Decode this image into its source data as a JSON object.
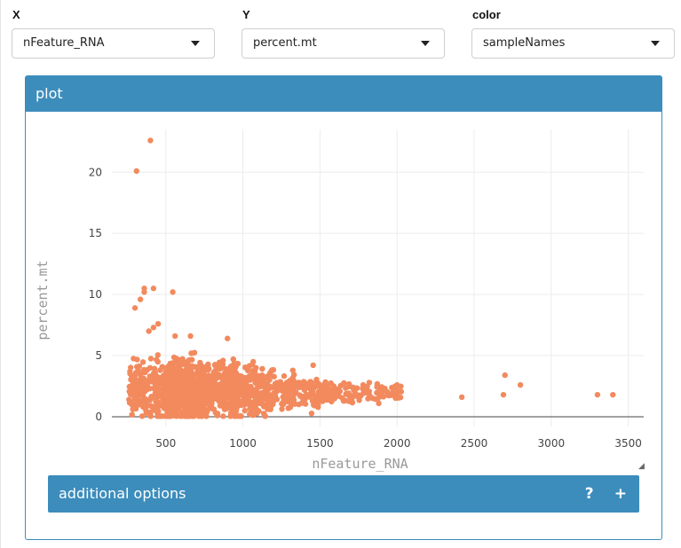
{
  "controls": {
    "x": {
      "label": "X",
      "value": "nFeature_RNA"
    },
    "y": {
      "label": "Y",
      "value": "percent.mt"
    },
    "color": {
      "label": "color",
      "value": "sampleNames"
    }
  },
  "box": {
    "title": "plot"
  },
  "additional_options": {
    "label": "additional options",
    "help": "?",
    "expand": "+"
  },
  "colors": {
    "accent": "#3c8dbc",
    "point": "#f28a5e",
    "grid": "#ececec"
  },
  "chart_data": {
    "type": "scatter",
    "title": "",
    "xlabel": "nFeature_RNA",
    "ylabel": "percent.mt",
    "xlim": [
      150,
      3600
    ],
    "ylim": [
      -0.8,
      23.5
    ],
    "xticks": [
      500,
      1000,
      1500,
      2000,
      2500,
      3000,
      3500
    ],
    "yticks": [
      0,
      5,
      10,
      15,
      20
    ],
    "grid": true,
    "legend": "none",
    "cluster": {
      "x_range": [
        220,
        2050
      ],
      "y_range": [
        0,
        6.6
      ],
      "approx_count": 2000
    },
    "outliers": [
      {
        "x": 400,
        "y": 22.6
      },
      {
        "x": 310,
        "y": 20.1
      },
      {
        "x": 360,
        "y": 10.5
      },
      {
        "x": 420,
        "y": 10.5
      },
      {
        "x": 545,
        "y": 10.2
      },
      {
        "x": 360,
        "y": 10.2
      },
      {
        "x": 300,
        "y": 8.9
      },
      {
        "x": 335,
        "y": 9.6
      },
      {
        "x": 450,
        "y": 7.6
      },
      {
        "x": 420,
        "y": 7.3
      },
      {
        "x": 390,
        "y": 7.0
      },
      {
        "x": 560,
        "y": 6.6
      },
      {
        "x": 660,
        "y": 6.6
      },
      {
        "x": 900,
        "y": 6.4
      },
      {
        "x": 2420,
        "y": 1.6
      },
      {
        "x": 2690,
        "y": 1.8
      },
      {
        "x": 2700,
        "y": 3.4
      },
      {
        "x": 2800,
        "y": 2.6
      },
      {
        "x": 3300,
        "y": 1.8
      },
      {
        "x": 3400,
        "y": 1.8
      }
    ]
  }
}
